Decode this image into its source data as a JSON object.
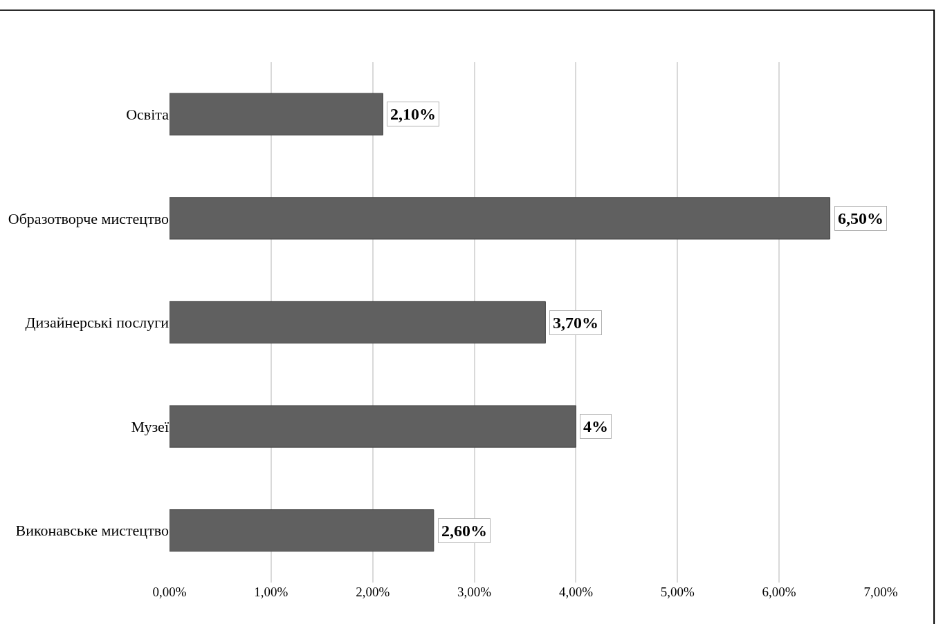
{
  "chart_data": {
    "type": "bar",
    "orientation": "horizontal",
    "categories": [
      "Освіта",
      "Образотворче мистецтво",
      "Дизайнерські послуги",
      "Музеї",
      "Виконавське мистецтво"
    ],
    "values": [
      2.1,
      6.5,
      3.7,
      4,
      2.6
    ],
    "value_labels": [
      "2,10%",
      "6,50%",
      "3,70%",
      "4%",
      "2,60%"
    ],
    "color": "#606060",
    "xlim": [
      0,
      7
    ],
    "xticks": [
      {
        "value": 0,
        "label": "0,00%"
      },
      {
        "value": 1,
        "label": "1,00%"
      },
      {
        "value": 2,
        "label": "2,00%"
      },
      {
        "value": 3,
        "label": "3,00%"
      },
      {
        "value": 4,
        "label": "4,00%"
      },
      {
        "value": 5,
        "label": "5,00%"
      },
      {
        "value": 6,
        "label": "6,00%"
      },
      {
        "value": 7,
        "label": "7,00%"
      }
    ],
    "grid": "x",
    "legend": false
  }
}
